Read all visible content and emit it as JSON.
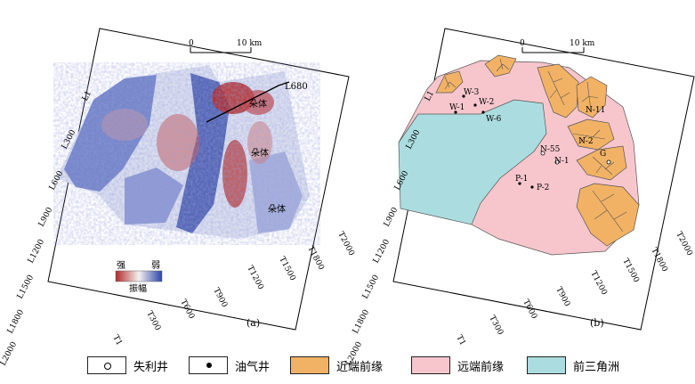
{
  "panel_a": {
    "scale_zero": "0",
    "scale_end": "10 km",
    "line_label": "L680",
    "body_labels": [
      "朵体",
      "朵体",
      "朵体"
    ],
    "colorbar_strong": "强",
    "colorbar_weak": "弱",
    "colorbar_title": "振幅",
    "caption": "(a)",
    "left_ticks": [
      "L1",
      "L300",
      "L600",
      "L900",
      "L1200",
      "L1500",
      "L1800",
      "L2000"
    ],
    "bottom_ticks": [
      "T1",
      "T300",
      "T600",
      "T900",
      "T1200",
      "T1500",
      "T1800",
      "T2000"
    ]
  },
  "panel_b": {
    "scale_zero": "0",
    "scale_end": "10 km",
    "wells": [
      "W-3",
      "W-1",
      "W-2",
      "W-6",
      "N-55",
      "N-1",
      "P-1",
      "P-2",
      "N-11",
      "N-2",
      "G"
    ],
    "caption": "(b)",
    "left_ticks": [
      "L1",
      "L300",
      "L600",
      "L900",
      "L1200",
      "L1500",
      "L1800",
      "L2000"
    ],
    "bottom_ticks": [
      "T1",
      "T300",
      "T600",
      "T900",
      "T1200",
      "T1500",
      "T1800",
      "T2000"
    ]
  },
  "legend": {
    "failed_well": "失利井",
    "oil_gas_well": "油气井",
    "proximal_front": "近端前缘",
    "distal_front": "远端前缘",
    "prodelta": "前三角洲"
  },
  "colors": {
    "proximal": "#f2b265",
    "distal": "#f6c6cc",
    "prodelta": "#abdde0",
    "amp_strong": "#b22a2a",
    "amp_weak": "#2b44a8"
  }
}
